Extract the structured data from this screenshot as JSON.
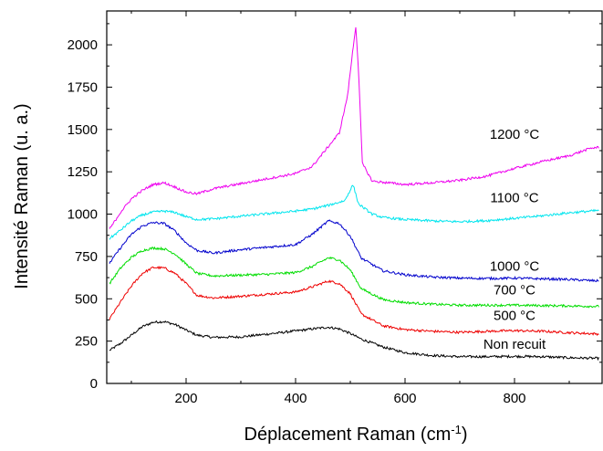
{
  "chart_data": {
    "type": "line",
    "title": "",
    "xlabel": "Déplacement Raman (cm",
    "xlabel_sup": "-1",
    "xlabel_end": ")",
    "ylabel": "Intensité Raman (u. a.)",
    "xlim": [
      55,
      960
    ],
    "ylim": [
      0,
      2200
    ],
    "x_ticks": [
      200,
      400,
      600,
      800
    ],
    "y_ticks": [
      0,
      250,
      500,
      750,
      1000,
      1250,
      1500,
      1750,
      2000
    ],
    "grid": false,
    "legend": "labels next to curves",
    "series": [
      {
        "name": "Non recuit",
        "color": "#000000",
        "points": [
          [
            60,
            195
          ],
          [
            80,
            235
          ],
          [
            100,
            285
          ],
          [
            120,
            335
          ],
          [
            140,
            362
          ],
          [
            160,
            365
          ],
          [
            180,
            348
          ],
          [
            200,
            315
          ],
          [
            220,
            285
          ],
          [
            250,
            272
          ],
          [
            300,
            275
          ],
          [
            350,
            292
          ],
          [
            400,
            310
          ],
          [
            430,
            322
          ],
          [
            460,
            332
          ],
          [
            480,
            322
          ],
          [
            500,
            295
          ],
          [
            520,
            262
          ],
          [
            560,
            215
          ],
          [
            600,
            182
          ],
          [
            650,
            165
          ],
          [
            700,
            158
          ],
          [
            750,
            158
          ],
          [
            800,
            160
          ],
          [
            850,
            158
          ],
          [
            900,
            152
          ],
          [
            955,
            148
          ]
        ]
      },
      {
        "name": "500 °C",
        "color": "#ee0000",
        "points": [
          [
            60,
            380
          ],
          [
            80,
            480
          ],
          [
            100,
            575
          ],
          [
            120,
            650
          ],
          [
            140,
            685
          ],
          [
            160,
            682
          ],
          [
            180,
            650
          ],
          [
            200,
            590
          ],
          [
            220,
            520
          ],
          [
            250,
            505
          ],
          [
            300,
            515
          ],
          [
            350,
            528
          ],
          [
            400,
            540
          ],
          [
            430,
            570
          ],
          [
            460,
            605
          ],
          [
            480,
            590
          ],
          [
            500,
            530
          ],
          [
            520,
            410
          ],
          [
            560,
            340
          ],
          [
            600,
            318
          ],
          [
            650,
            308
          ],
          [
            700,
            302
          ],
          [
            750,
            308
          ],
          [
            800,
            312
          ],
          [
            850,
            308
          ],
          [
            900,
            300
          ],
          [
            955,
            292
          ]
        ]
      },
      {
        "name": "700 °C",
        "color": "#00dd00",
        "points": [
          [
            60,
            590
          ],
          [
            80,
            680
          ],
          [
            100,
            745
          ],
          [
            120,
            785
          ],
          [
            140,
            800
          ],
          [
            160,
            795
          ],
          [
            180,
            765
          ],
          [
            200,
            705
          ],
          [
            220,
            650
          ],
          [
            250,
            635
          ],
          [
            300,
            640
          ],
          [
            350,
            645
          ],
          [
            400,
            655
          ],
          [
            430,
            690
          ],
          [
            460,
            742
          ],
          [
            480,
            730
          ],
          [
            500,
            670
          ],
          [
            520,
            560
          ],
          [
            560,
            495
          ],
          [
            600,
            478
          ],
          [
            650,
            468
          ],
          [
            700,
            462
          ],
          [
            750,
            462
          ],
          [
            800,
            462
          ],
          [
            850,
            460
          ],
          [
            900,
            458
          ],
          [
            955,
            455
          ]
        ]
      },
      {
        "name": "1000 °C",
        "color": "#0000cc",
        "points": [
          [
            60,
            710
          ],
          [
            80,
            800
          ],
          [
            100,
            880
          ],
          [
            120,
            930
          ],
          [
            140,
            950
          ],
          [
            160,
            945
          ],
          [
            180,
            900
          ],
          [
            200,
            830
          ],
          [
            220,
            785
          ],
          [
            250,
            770
          ],
          [
            300,
            790
          ],
          [
            350,
            805
          ],
          [
            400,
            820
          ],
          [
            430,
            880
          ],
          [
            460,
            960
          ],
          [
            480,
            945
          ],
          [
            500,
            870
          ],
          [
            520,
            740
          ],
          [
            560,
            665
          ],
          [
            600,
            642
          ],
          [
            650,
            628
          ],
          [
            700,
            622
          ],
          [
            750,
            620
          ],
          [
            800,
            622
          ],
          [
            850,
            618
          ],
          [
            900,
            614
          ],
          [
            955,
            605
          ]
        ]
      },
      {
        "name": "1100 °C",
        "color": "#00e5ee",
        "points": [
          [
            60,
            855
          ],
          [
            80,
            905
          ],
          [
            100,
            960
          ],
          [
            120,
            995
          ],
          [
            140,
            1012
          ],
          [
            160,
            1018
          ],
          [
            180,
            1010
          ],
          [
            200,
            985
          ],
          [
            220,
            968
          ],
          [
            250,
            972
          ],
          [
            300,
            988
          ],
          [
            350,
            1003
          ],
          [
            400,
            1018
          ],
          [
            430,
            1030
          ],
          [
            460,
            1052
          ],
          [
            490,
            1080
          ],
          [
            505,
            1175
          ],
          [
            515,
            1060
          ],
          [
            540,
            1000
          ],
          [
            560,
            980
          ],
          [
            600,
            968
          ],
          [
            650,
            960
          ],
          [
            700,
            955
          ],
          [
            750,
            962
          ],
          [
            800,
            975
          ],
          [
            850,
            990
          ],
          [
            900,
            1008
          ],
          [
            955,
            1022
          ]
        ]
      },
      {
        "name": "1200 °C",
        "color": "#ee00ee",
        "points": [
          [
            60,
            910
          ],
          [
            80,
            1010
          ],
          [
            100,
            1090
          ],
          [
            120,
            1140
          ],
          [
            140,
            1175
          ],
          [
            160,
            1185
          ],
          [
            180,
            1160
          ],
          [
            200,
            1130
          ],
          [
            220,
            1120
          ],
          [
            250,
            1150
          ],
          [
            300,
            1180
          ],
          [
            350,
            1210
          ],
          [
            400,
            1240
          ],
          [
            430,
            1280
          ],
          [
            460,
            1400
          ],
          [
            480,
            1480
          ],
          [
            495,
            1700
          ],
          [
            505,
            1980
          ],
          [
            510,
            2110
          ],
          [
            515,
            1850
          ],
          [
            522,
            1300
          ],
          [
            540,
            1195
          ],
          [
            600,
            1175
          ],
          [
            650,
            1185
          ],
          [
            700,
            1200
          ],
          [
            750,
            1225
          ],
          [
            800,
            1270
          ],
          [
            850,
            1310
          ],
          [
            900,
            1345
          ],
          [
            940,
            1390
          ],
          [
            955,
            1395
          ]
        ]
      }
    ],
    "labels": [
      {
        "text": "Non recuit",
        "x": 800,
        "y": 205
      },
      {
        "text": "500 °C",
        "x": 800,
        "y": 375
      },
      {
        "text": "700 °C",
        "x": 800,
        "y": 525
      },
      {
        "text": "1000 °C",
        "x": 800,
        "y": 665
      },
      {
        "text": "1100 °C",
        "x": 800,
        "y": 1070
      },
      {
        "text": "1200 °C",
        "x": 800,
        "y": 1445
      }
    ]
  }
}
